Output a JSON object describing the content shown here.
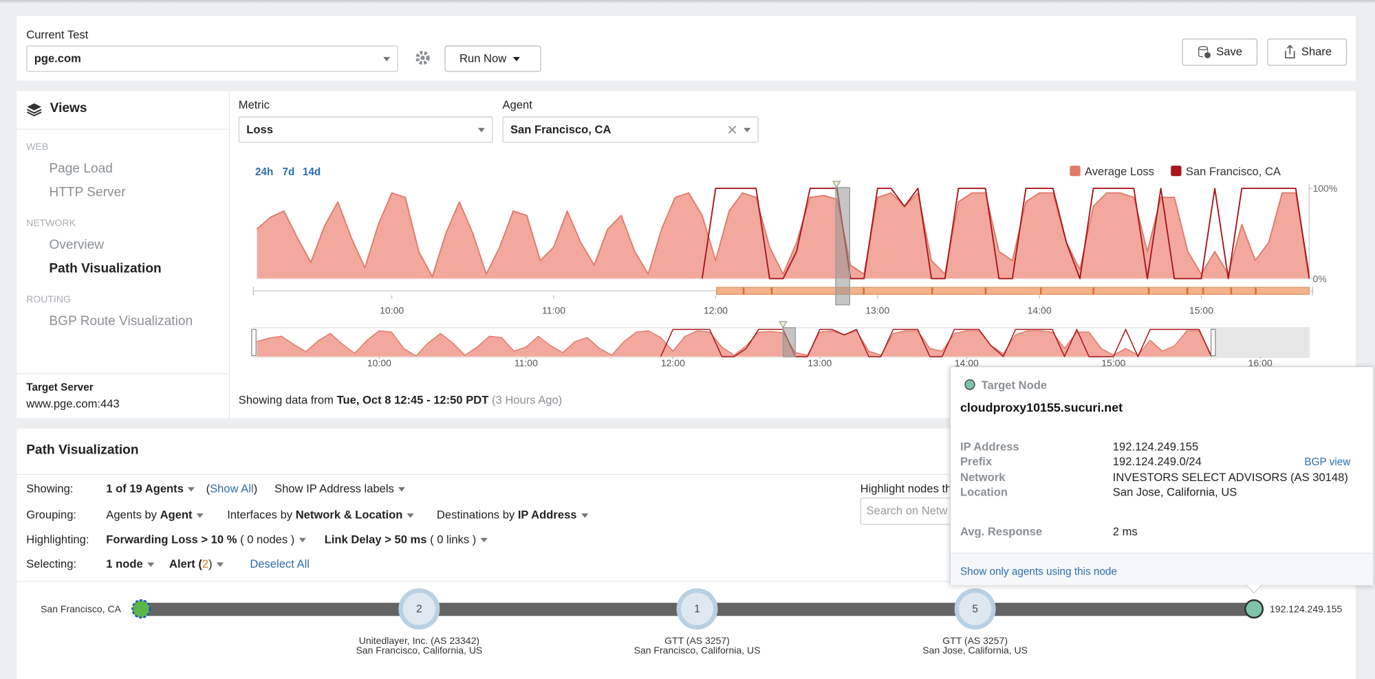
{
  "header": {
    "label": "Current Test",
    "test": "pge.com",
    "run": "Run Now",
    "save": "Save",
    "share": "Share"
  },
  "views": {
    "title": "Views",
    "sections": [
      {
        "heading": "WEB",
        "items": [
          "Page Load",
          "HTTP Server"
        ]
      },
      {
        "heading": "NETWORK",
        "items": [
          "Overview",
          "Path Visualization"
        ]
      },
      {
        "heading": "ROUTING",
        "items": [
          "BGP Route Visualization"
        ]
      }
    ]
  },
  "target_server": {
    "label": "Target Server",
    "value": "www.pge.com:443"
  },
  "metric": {
    "label": "Metric",
    "value": "Loss"
  },
  "agent": {
    "label": "Agent",
    "value": "San Francisco, CA"
  },
  "time_ranges": [
    "24h",
    "7d",
    "14d"
  ],
  "chart_data": {
    "type": "area",
    "x": [
      "09:10",
      "09:15",
      "09:20",
      "09:25",
      "09:30",
      "09:35",
      "09:40",
      "09:45",
      "09:50",
      "09:55",
      "10:00",
      "10:05",
      "10:10",
      "10:15",
      "10:20",
      "10:25",
      "10:30",
      "10:35",
      "10:40",
      "10:45",
      "10:50",
      "10:55",
      "11:00",
      "11:05",
      "11:10",
      "11:15",
      "11:20",
      "11:25",
      "11:30",
      "11:35",
      "11:40",
      "11:45",
      "11:50",
      "11:55",
      "12:00",
      "12:05",
      "12:10",
      "12:15",
      "12:20",
      "12:25",
      "12:30",
      "12:35",
      "12:40",
      "12:45",
      "12:50",
      "12:55",
      "13:00",
      "13:05",
      "13:10",
      "13:15",
      "13:20",
      "13:25",
      "13:30",
      "13:35",
      "13:40",
      "13:45",
      "13:50",
      "13:55",
      "14:00",
      "14:05",
      "14:10",
      "14:15",
      "14:20",
      "14:25",
      "14:30",
      "14:35",
      "14:40",
      "14:45",
      "14:50",
      "14:55",
      "15:00",
      "15:05",
      "15:10",
      "15:15",
      "15:20",
      "15:25",
      "15:30",
      "15:35",
      "15:40"
    ],
    "series": [
      {
        "name": "Average Loss",
        "color": "#e07b68",
        "fill": "#f3a89e",
        "values": [
          55,
          68,
          75,
          45,
          18,
          58,
          85,
          45,
          12,
          60,
          95,
          90,
          30,
          2,
          50,
          85,
          50,
          5,
          35,
          75,
          70,
          20,
          35,
          75,
          40,
          15,
          55,
          70,
          30,
          5,
          55,
          90,
          95,
          70,
          20,
          75,
          95,
          90,
          35,
          5,
          40,
          90,
          92,
          88,
          15,
          5,
          90,
          95,
          80,
          95,
          20,
          5,
          85,
          95,
          95,
          30,
          20,
          85,
          95,
          95,
          40,
          10,
          80,
          95,
          95,
          90,
          30,
          90,
          90,
          30,
          5,
          30,
          5,
          60,
          20,
          40,
          95,
          95,
          5
        ]
      },
      {
        "name": "San Francisco, CA",
        "color": "#a8161b",
        "values": [
          null,
          null,
          null,
          null,
          null,
          null,
          null,
          null,
          null,
          null,
          null,
          null,
          null,
          null,
          null,
          null,
          null,
          null,
          null,
          null,
          null,
          null,
          null,
          null,
          null,
          null,
          null,
          null,
          null,
          null,
          null,
          null,
          null,
          0,
          100,
          100,
          100,
          100,
          0,
          0,
          30,
          100,
          100,
          100,
          0,
          0,
          100,
          100,
          80,
          100,
          0,
          0,
          100,
          100,
          100,
          0,
          0,
          100,
          100,
          100,
          40,
          0,
          100,
          100,
          100,
          100,
          0,
          100,
          0,
          0,
          0,
          100,
          0,
          100,
          100,
          100,
          100,
          100,
          0
        ]
      }
    ],
    "xlim": [
      "09:10",
      "15:40"
    ],
    "xticks": [
      "10:00",
      "11:00",
      "12:00",
      "13:00",
      "14:00",
      "15:00"
    ],
    "ylim": [
      0,
      100
    ],
    "yticks": [
      {
        "value": 100,
        "label": "100%"
      },
      {
        "value": 0,
        "label": "0%"
      }
    ],
    "overview": {
      "xlim": [
        "09:10",
        "16:20"
      ],
      "xticks": [
        "10:00",
        "11:00",
        "12:00",
        "13:00",
        "14:00",
        "15:00",
        "16:00"
      ]
    }
  },
  "status": {
    "prefix": "Showing data from",
    "range": "Tue, Oct 8 12:45 - 12:50 PDT",
    "ago": "(3 Hours Ago)"
  },
  "path_viz": {
    "title": "Path Visualization",
    "showing": {
      "label": "Showing:",
      "value": "1 of 19 Agents",
      "show_all": [
        "(",
        "Show All",
        ")"
      ],
      "ip_labels": "Show IP Address labels"
    },
    "grouping": {
      "label": "Grouping:",
      "items": [
        {
          "prefix": "Agents by",
          "value": "Agent"
        },
        {
          "prefix": "Interfaces by",
          "value": "Network & Location"
        },
        {
          "prefix": "Destinations by",
          "value": "IP Address"
        }
      ]
    },
    "highlighting": {
      "label": "Highlighting:",
      "items": [
        {
          "value": "Forwarding Loss > 10 %",
          "note": "( 0 nodes )"
        },
        {
          "value": "Link Delay > 50 ms",
          "note": "( 0 links )"
        }
      ]
    },
    "selecting": {
      "label": "Selecting:",
      "node": "1 node",
      "alert": [
        "Alert (",
        "2",
        ")"
      ],
      "deselect": "Deselect All"
    },
    "highlight_search": {
      "label": "Highlight nodes th",
      "placeholder": "Search on Netw"
    }
  },
  "path": {
    "source": "San Francisco, CA",
    "hops": [
      {
        "count": 2,
        "name": "Unitedlayer, Inc. (AS 23342)",
        "location": "San Francisco, California, US"
      },
      {
        "count": 1,
        "name": "GTT (AS 3257)",
        "location": "San Francisco, California, US"
      },
      {
        "count": 5,
        "name": "GTT (AS 3257)",
        "location": "San Jose, California, US"
      }
    ],
    "target": "192.124.249.155"
  },
  "popup": {
    "type": "Target Node",
    "host": "cloudproxy10155.sucuri.net",
    "fields": [
      [
        "IP Address",
        "192.124.249.155"
      ],
      [
        "Prefix",
        "192.124.249.0/24"
      ],
      [
        "Network",
        "INVESTORS SELECT ADVISORS (AS 30148)"
      ],
      [
        "Location",
        "San Jose, California, US"
      ]
    ],
    "bgp": "BGP view",
    "avg": [
      "Avg. Response",
      "2 ms"
    ],
    "link": "Show only agents using this node"
  }
}
